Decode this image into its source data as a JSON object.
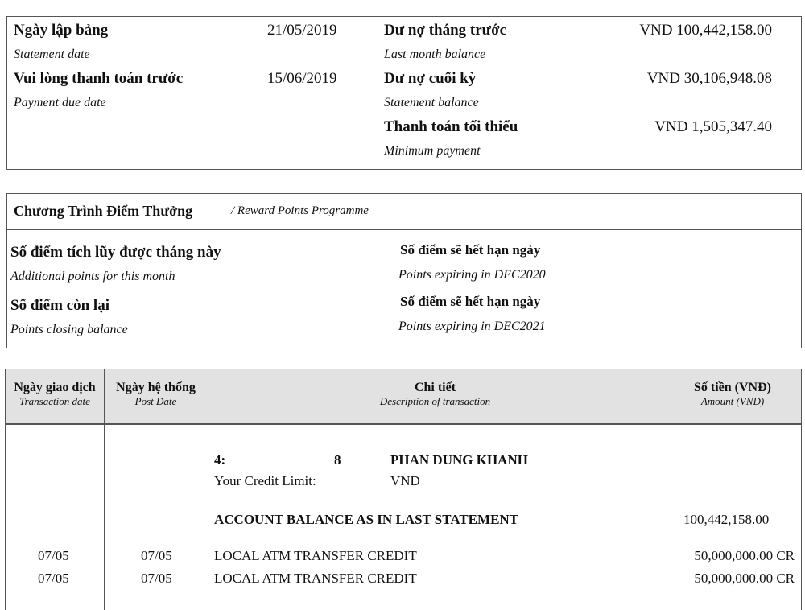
{
  "summary": {
    "statement_date": {
      "label": "Ngày lập bảng",
      "sub": "Statement date",
      "value": "21/05/2019"
    },
    "due_date": {
      "label": "Vui lòng thanh toán trước",
      "sub": "Payment due date",
      "value": "15/06/2019"
    },
    "last_balance": {
      "label": "Dư nợ tháng trước",
      "sub": "Last month balance",
      "value": "VND 100,442,158.00"
    },
    "statement_balance": {
      "label": "Dư nợ cuối kỳ",
      "sub": "Statement balance",
      "value": "VND 30,106,948.08"
    },
    "minimum_payment": {
      "label": "Thanh toán tối thiểu",
      "sub": "Minimum payment",
      "value": "VND 1,505,347.40"
    }
  },
  "rewards": {
    "title": "Chương Trình Điểm Thưởng",
    "title_en": "/ Reward Points Programme",
    "additional": {
      "label": "Số điểm tích lũy được tháng này",
      "sub": "Additional points for this month"
    },
    "closing": {
      "label": "Số điểm còn lại",
      "sub": "Points closing balance"
    },
    "expiring1": {
      "label": "Số điểm sẽ hết hạn ngày",
      "sub": "Points expiring in  DEC2020"
    },
    "expiring2": {
      "label": "Số điểm sẽ hết hạn ngày",
      "sub": "Points expiring in  DEC2021"
    }
  },
  "table": {
    "headers": [
      {
        "vi": "Ngày giao dịch",
        "en": "Transaction date"
      },
      {
        "vi": "Ngày hệ thống",
        "en": "Post Date"
      },
      {
        "vi": "Chi tiết",
        "en": "Description of transaction"
      },
      {
        "vi": "Số tiền (VNĐ)",
        "en": "Amount (VND)"
      }
    ],
    "card_prefix": "4:",
    "card_suffix": "8",
    "card_holder": "PHAN DUNG KHANH",
    "credit_limit_label": "Your Credit Limit:",
    "credit_limit_currency": "VND",
    "opening_label": "ACCOUNT  BALANCE AS IN LAST STATEMENT",
    "opening_amount": "100,442,158.00",
    "rows": [
      {
        "trans_date": "07/05",
        "post_date": "07/05",
        "description": "LOCAL ATM TRANSFER CREDIT",
        "amount": "50,000,000.00 CR"
      },
      {
        "trans_date": "07/05",
        "post_date": "07/05",
        "description": "LOCAL ATM TRANSFER CREDIT",
        "amount": "50,000,000.00 CR"
      }
    ]
  }
}
